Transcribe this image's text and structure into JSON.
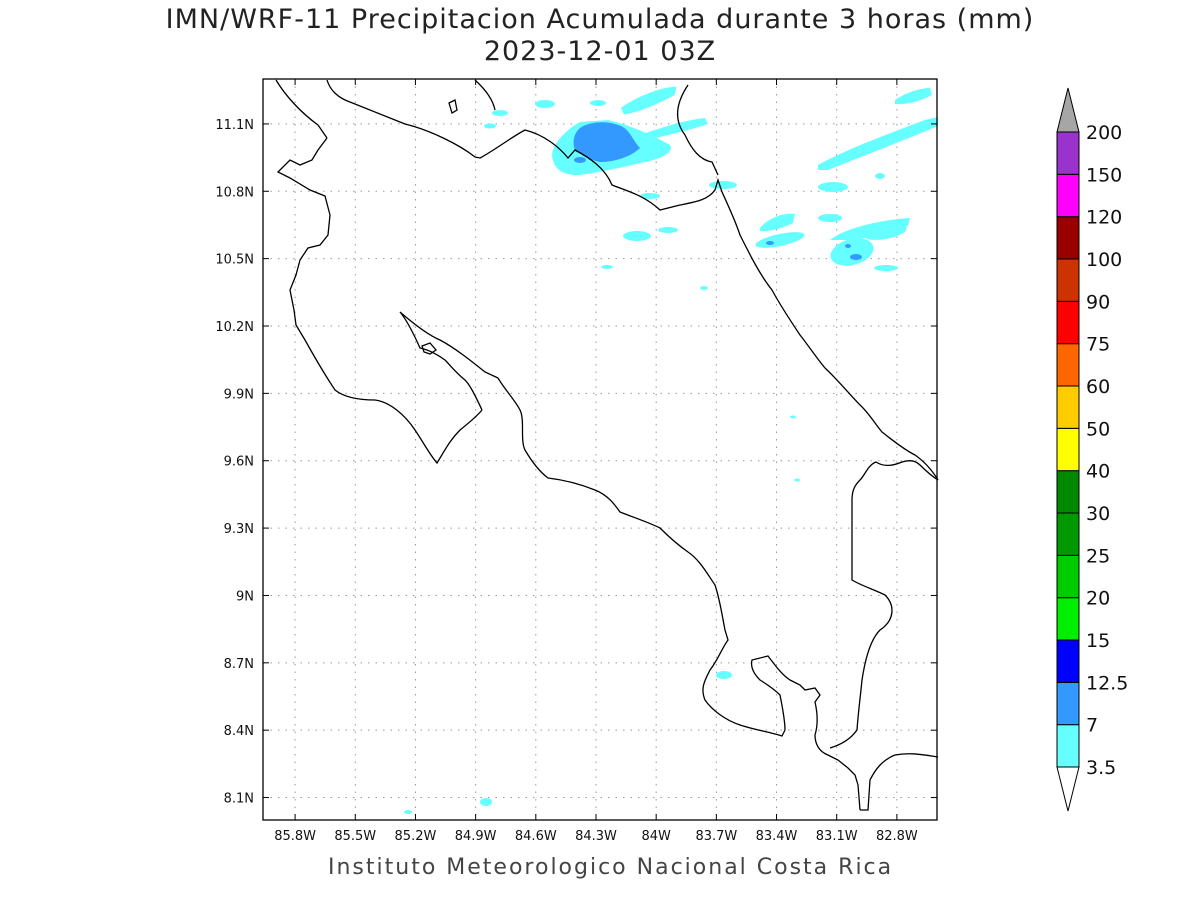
{
  "title": {
    "line1": "IMN/WRF-11 Precipitacion Acumulada durante 3 horas (mm)",
    "line2": "2023-12-01 03Z"
  },
  "footer": "Instituto Meteorologico Nacional Costa Rica",
  "map": {
    "projection": "lat-lon",
    "lon_range": [
      -85.96,
      -82.6
    ],
    "lat_range": [
      8.0,
      11.3
    ],
    "grid": true,
    "lon_ticks": [
      "85.8W",
      "85.5W",
      "85.2W",
      "84.9W",
      "84.6W",
      "84.3W",
      "84W",
      "83.7W",
      "83.4W",
      "83.1W",
      "82.8W"
    ],
    "lat_ticks": [
      "11.1N",
      "10.8N",
      "10.5N",
      "10.2N",
      "9.9N",
      "9.6N",
      "9.3N",
      "9N",
      "8.7N",
      "8.4N",
      "8.1N"
    ]
  },
  "colorbar": {
    "levels": [
      "3.5",
      "7",
      "12.5",
      "15",
      "20",
      "25",
      "30",
      "40",
      "50",
      "60",
      "75",
      "90",
      "100",
      "120",
      "150",
      "200"
    ],
    "colors": [
      "#66ffff",
      "#3399ff",
      "#0000ff",
      "#00ee00",
      "#00cc00",
      "#009900",
      "#008800",
      "#ffff00",
      "#ffcc00",
      "#ff6600",
      "#ff0000",
      "#cc3300",
      "#990000",
      "#ff00ff",
      "#9933cc",
      "#f2f2f2",
      "#a6a6a6"
    ],
    "lower_extension_color": "#ffffff",
    "upper_extension_color": "#a6a6a6"
  },
  "precip_areas": [
    {
      "level": "3.5",
      "color": "#66ffff"
    },
    {
      "level": "7",
      "color": "#3399ff"
    }
  ]
}
